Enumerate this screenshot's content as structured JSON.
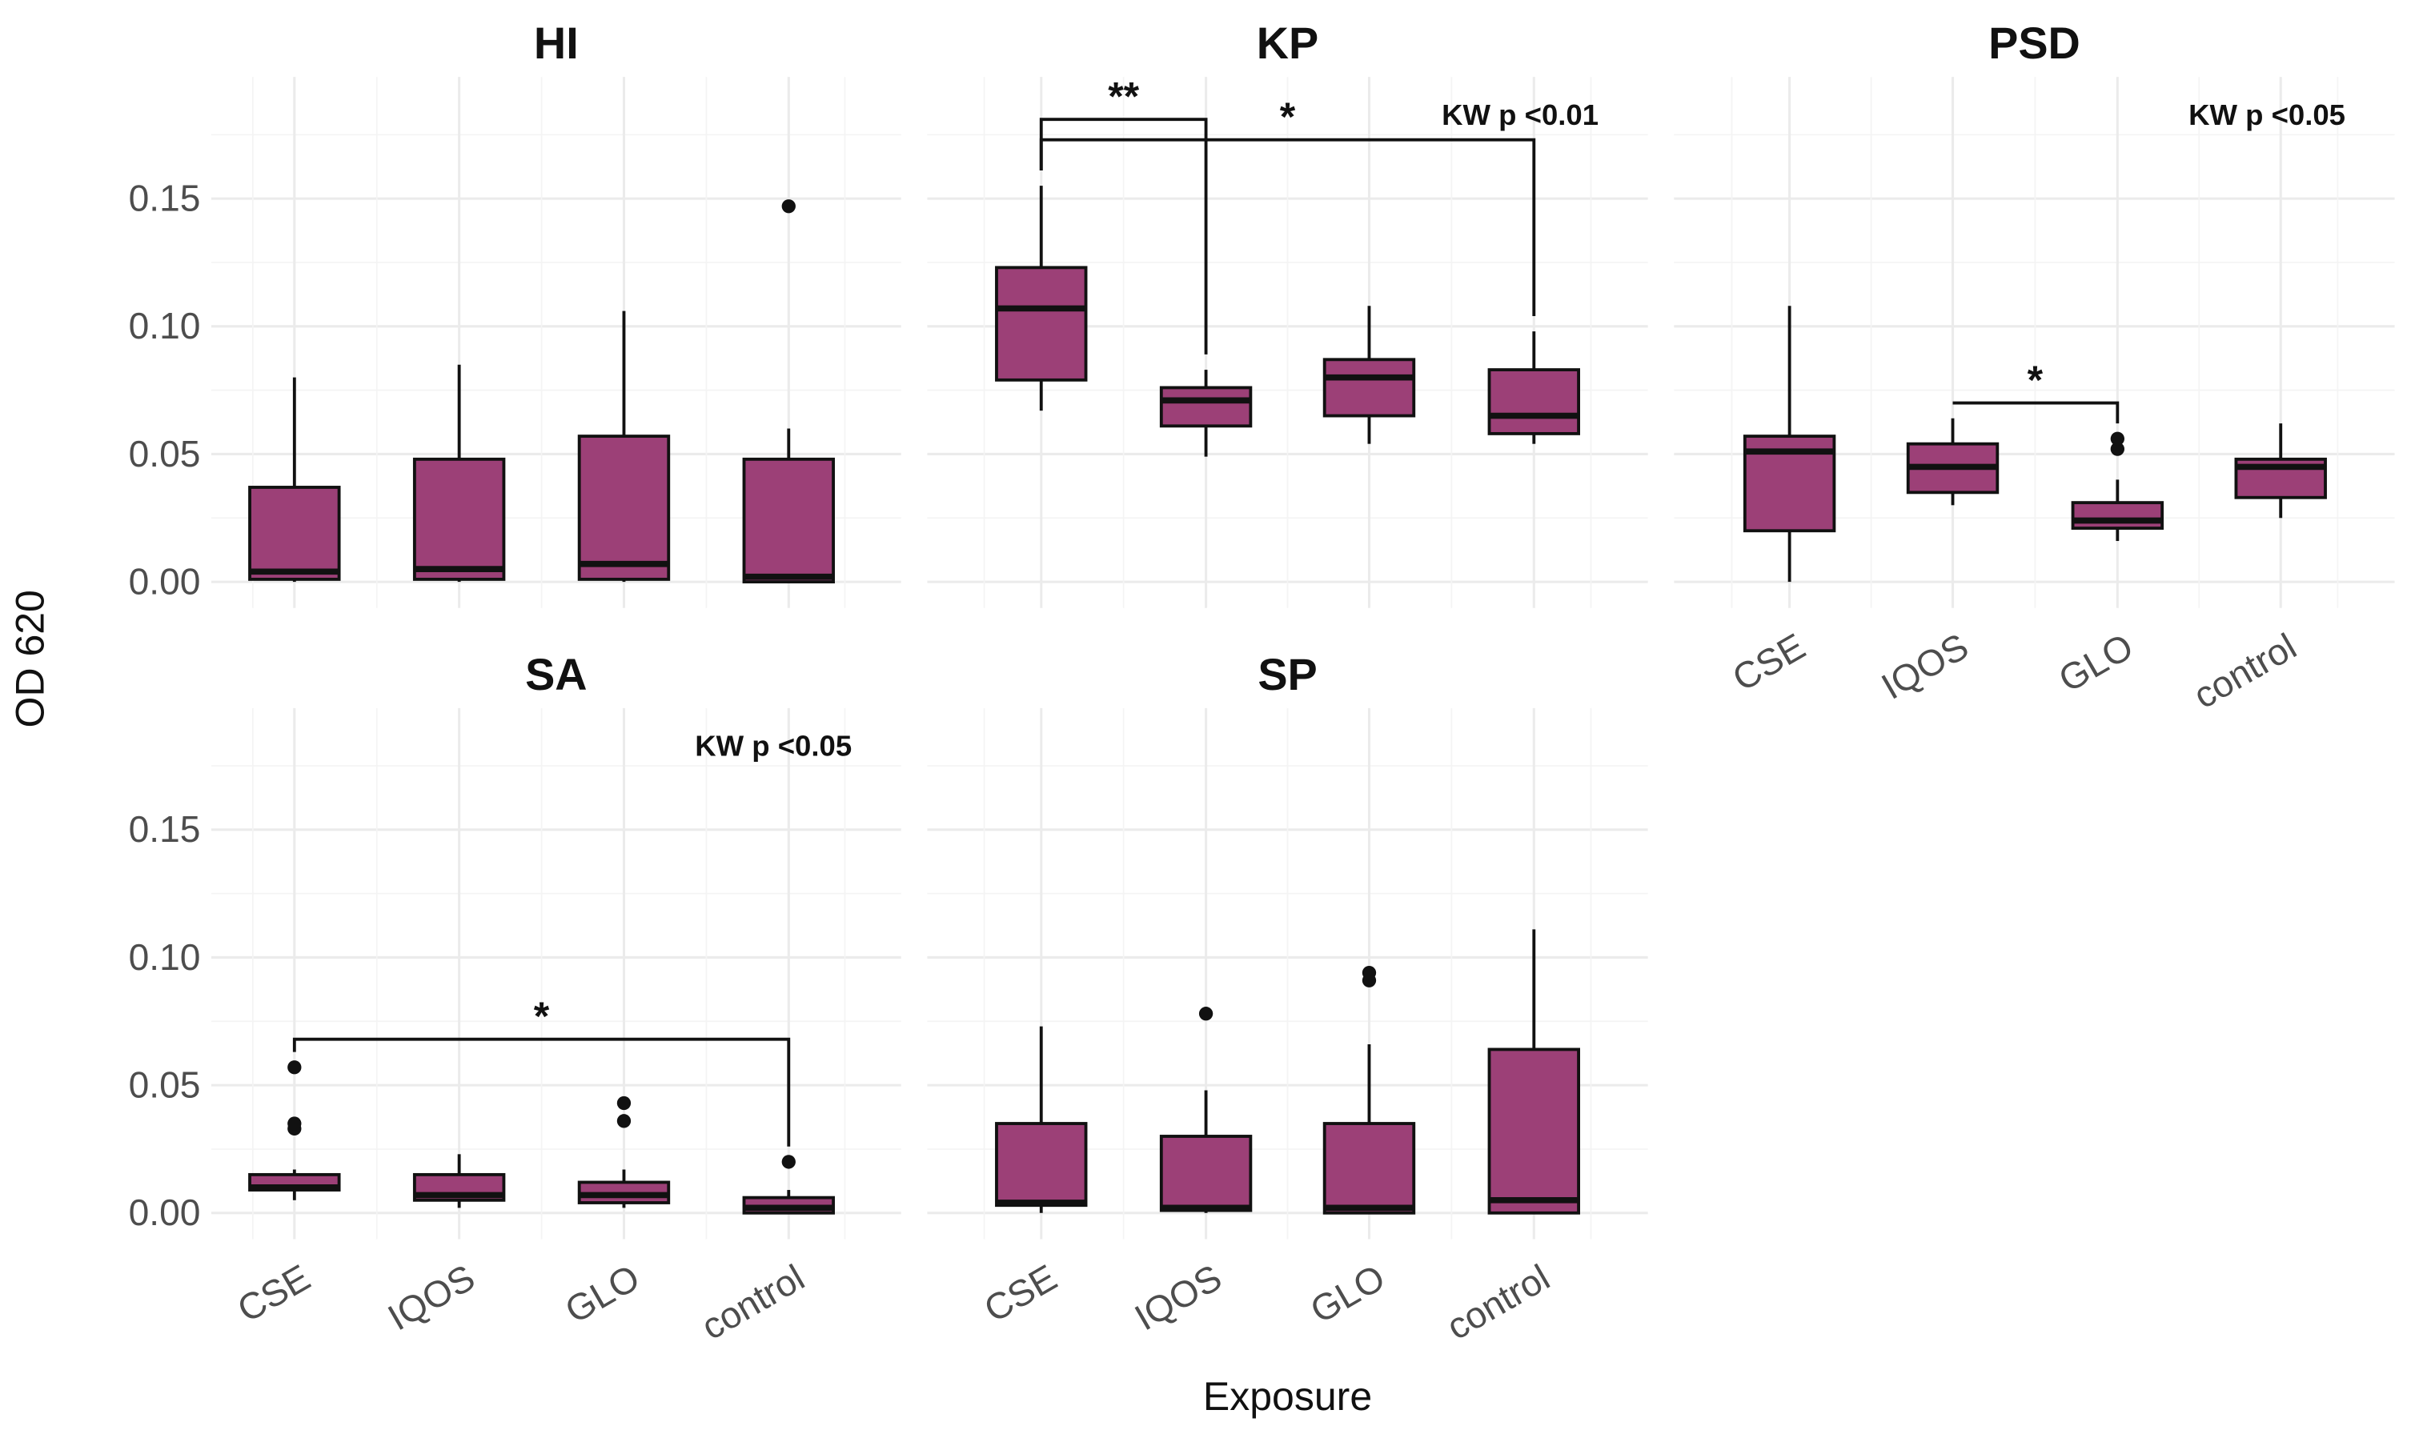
{
  "colors": {
    "box_fill": "#9c4077",
    "outline": "#111111",
    "grid": "#ebebeb"
  },
  "chart_data": {
    "type": "box",
    "xlabel": "Exposure",
    "ylabel": "OD 620",
    "ylim": [
      -0.005,
      0.185
    ],
    "yticks": [
      0.0,
      0.05,
      0.1,
      0.15
    ],
    "ytick_labels": [
      "0.00",
      "0.05",
      "0.10",
      "0.15"
    ],
    "categories": [
      "CSE",
      "IQOS",
      "GLO",
      "control"
    ],
    "panels": [
      {
        "title": "HI",
        "kw": "",
        "boxes": [
          {
            "lo": 0.0,
            "q1": 0.001,
            "med": 0.004,
            "q3": 0.037,
            "hi": 0.08,
            "out": []
          },
          {
            "lo": 0.0,
            "q1": 0.001,
            "med": 0.005,
            "q3": 0.048,
            "hi": 0.085,
            "out": []
          },
          {
            "lo": 0.0,
            "q1": 0.001,
            "med": 0.007,
            "q3": 0.057,
            "hi": 0.106,
            "out": []
          },
          {
            "lo": 0.0,
            "q1": 0.0,
            "med": 0.002,
            "q3": 0.048,
            "hi": 0.06,
            "out": [
              0.147
            ]
          }
        ],
        "brackets": []
      },
      {
        "title": "KP",
        "kw": "KW p <0.01",
        "boxes": [
          {
            "lo": 0.067,
            "q1": 0.079,
            "med": 0.107,
            "q3": 0.123,
            "hi": 0.155,
            "out": []
          },
          {
            "lo": 0.049,
            "q1": 0.061,
            "med": 0.071,
            "q3": 0.076,
            "hi": 0.083,
            "out": []
          },
          {
            "lo": 0.054,
            "q1": 0.065,
            "med": 0.08,
            "q3": 0.087,
            "hi": 0.108,
            "out": []
          },
          {
            "lo": 0.054,
            "q1": 0.058,
            "med": 0.065,
            "q3": 0.083,
            "hi": 0.098,
            "out": []
          }
        ],
        "brackets": [
          {
            "from": 0,
            "to": 1,
            "y": 0.181,
            "label": "**"
          },
          {
            "from": 0,
            "to": 3,
            "y": 0.173,
            "label": "*"
          }
        ]
      },
      {
        "title": "PSD",
        "kw": "KW p <0.05",
        "boxes": [
          {
            "lo": 0.0,
            "q1": 0.02,
            "med": 0.051,
            "q3": 0.057,
            "hi": 0.108,
            "out": []
          },
          {
            "lo": 0.03,
            "q1": 0.035,
            "med": 0.045,
            "q3": 0.054,
            "hi": 0.064,
            "out": []
          },
          {
            "lo": 0.016,
            "q1": 0.021,
            "med": 0.024,
            "q3": 0.031,
            "hi": 0.04,
            "out": [
              0.052,
              0.056
            ]
          },
          {
            "lo": 0.025,
            "q1": 0.033,
            "med": 0.045,
            "q3": 0.048,
            "hi": 0.062,
            "out": []
          }
        ],
        "brackets": [
          {
            "from": 1,
            "to": 2,
            "y": 0.07,
            "label": "*"
          }
        ]
      },
      {
        "title": "SA",
        "kw": "KW p <0.05",
        "boxes": [
          {
            "lo": 0.005,
            "q1": 0.009,
            "med": 0.01,
            "q3": 0.015,
            "hi": 0.017,
            "out": [
              0.033,
              0.035,
              0.057
            ]
          },
          {
            "lo": 0.002,
            "q1": 0.005,
            "med": 0.007,
            "q3": 0.015,
            "hi": 0.023,
            "out": []
          },
          {
            "lo": 0.002,
            "q1": 0.004,
            "med": 0.007,
            "q3": 0.012,
            "hi": 0.017,
            "out": [
              0.036,
              0.043
            ]
          },
          {
            "lo": 0.0,
            "q1": 0.0,
            "med": 0.002,
            "q3": 0.006,
            "hi": 0.009,
            "out": [
              0.02
            ]
          }
        ],
        "brackets": [
          {
            "from": 0,
            "to": 3,
            "y": 0.068,
            "label": "*"
          }
        ]
      },
      {
        "title": "SP",
        "kw": "",
        "boxes": [
          {
            "lo": 0.0,
            "q1": 0.003,
            "med": 0.004,
            "q3": 0.035,
            "hi": 0.073,
            "out": []
          },
          {
            "lo": 0.0,
            "q1": 0.001,
            "med": 0.002,
            "q3": 0.03,
            "hi": 0.048,
            "out": [
              0.078
            ]
          },
          {
            "lo": 0.0,
            "q1": 0.0,
            "med": 0.002,
            "q3": 0.035,
            "hi": 0.066,
            "out": [
              0.091,
              0.094
            ]
          },
          {
            "lo": 0.0,
            "q1": 0.0,
            "med": 0.005,
            "q3": 0.064,
            "hi": 0.111,
            "out": []
          }
        ],
        "brackets": []
      }
    ]
  }
}
